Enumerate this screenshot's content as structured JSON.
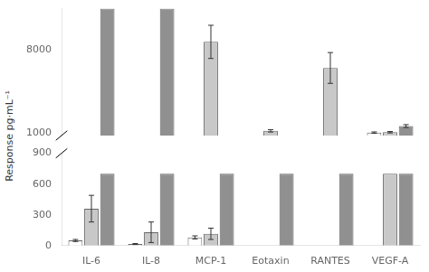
{
  "chart_data": [
    {
      "type": "bar",
      "ylabel": "Response pg·mL⁻¹",
      "categories": [
        "IL-6",
        "IL-8",
        "MCP-1",
        "Eotaxin",
        "RANTES",
        "VEGF-A"
      ],
      "series": [
        {
          "color": "#ffffff",
          "values": [
            null,
            null,
            null,
            null,
            null,
            1050
          ],
          "errors": [
            null,
            null,
            null,
            null,
            null,
            55
          ]
        },
        {
          "color": "#c8c8c8",
          "values": [
            null,
            null,
            8700,
            1200,
            6500,
            1080
          ],
          "errors": [
            null,
            null,
            1400,
            100,
            1300,
            60
          ]
        },
        {
          "color": "#909090",
          "values": [
            11500,
            11500,
            null,
            null,
            null,
            1600
          ],
          "errors": [
            0,
            0,
            null,
            null,
            null,
            120
          ]
        }
      ],
      "ylim": [
        800,
        11500
      ],
      "yticks": [
        1000,
        8000
      ],
      "grid": false,
      "tick_labels": "y"
    },
    {
      "type": "bar",
      "categories": [
        "IL-6",
        "IL-8",
        "MCP-1",
        "Eotaxin",
        "RANTES",
        "VEGF-A"
      ],
      "series": [
        {
          "color": "#ffffff",
          "values": [
            50,
            15,
            80,
            null,
            null,
            null
          ],
          "errors": [
            10,
            5,
            15,
            null,
            null,
            null
          ]
        },
        {
          "color": "#c8c8c8",
          "values": [
            360,
            130,
            115,
            null,
            null,
            700
          ],
          "errors": [
            130,
            100,
            55,
            null,
            null,
            0
          ]
        },
        {
          "color": "#909090",
          "values": [
            700,
            700,
            700,
            700,
            700,
            700
          ],
          "errors": [
            0,
            0,
            0,
            0,
            0,
            0
          ]
        }
      ],
      "ylim": [
        0,
        900
      ],
      "yticks": [
        0,
        300,
        600,
        900
      ],
      "grid": false
    }
  ]
}
